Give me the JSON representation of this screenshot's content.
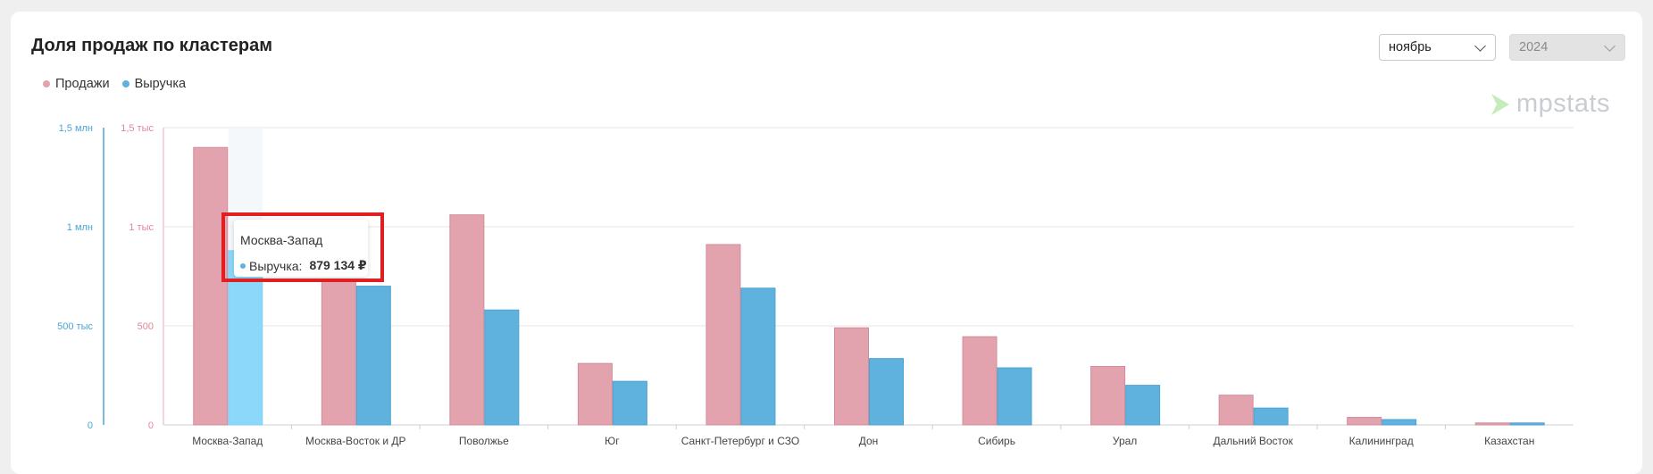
{
  "header": {
    "title": "Доля продаж по кластерам"
  },
  "filters": {
    "month": "ноябрь",
    "year": "2024"
  },
  "logo": {
    "text": "mpstats"
  },
  "colors": {
    "sales": "#e2a3ae",
    "revenue": "#5fb2dd",
    "revenue_highlight": "#8bd8fb",
    "sales_axis": "#e08899",
    "revenue_axis": "#4aa6d6"
  },
  "tooltip": {
    "title": "Москва-Запад",
    "series": "Выручка:",
    "value": "879 134 ₽"
  },
  "chart_data": {
    "type": "bar",
    "categories": [
      "Москва-Запад",
      "Москва-Восток и ДР",
      "Поволжье",
      "Юг",
      "Санкт-Петербург и СЗО",
      "Дон",
      "Сибирь",
      "Урал",
      "Дальний Восток",
      "Калининград",
      "Казахстан"
    ],
    "series": [
      {
        "name": "Продажи",
        "axis": "left_inner",
        "values": [
          1400,
          730,
          1060,
          310,
          910,
          490,
          445,
          295,
          150,
          38,
          10
        ]
      },
      {
        "name": "Выручка",
        "axis": "left_outer",
        "values": [
          879134,
          700000,
          580000,
          220000,
          690000,
          335000,
          288000,
          200000,
          85000,
          27000,
          10000
        ]
      }
    ],
    "sales_axis": {
      "ylim": [
        0,
        1500
      ],
      "ticks": [
        0,
        500,
        1000,
        1500
      ],
      "tick_labels": [
        "0",
        "500",
        "1 тыс",
        "1,5 тыс"
      ]
    },
    "revenue_axis": {
      "ylim": [
        0,
        1500000
      ],
      "ticks": [
        0,
        500000,
        1000000,
        1500000
      ],
      "tick_labels": [
        "0",
        "500 тыс",
        "1 млн",
        "1,5 млн"
      ]
    },
    "highlighted_category": "Москва-Запад",
    "legend_position": "top-left",
    "grid": true
  }
}
